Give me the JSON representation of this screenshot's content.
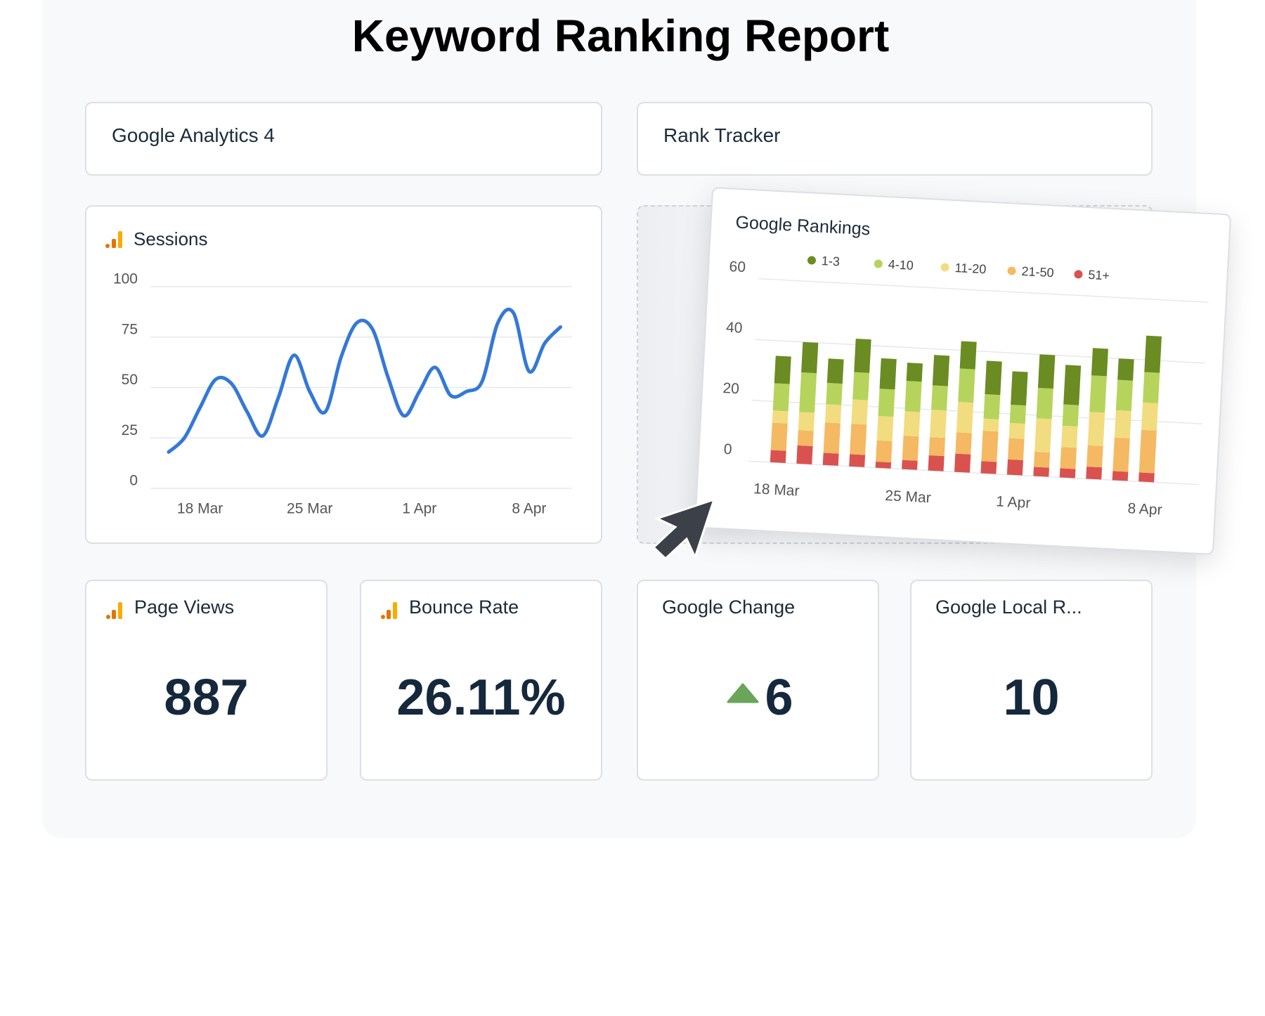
{
  "title": "Keyword Ranking Report",
  "sections": [
    "Google Analytics 4",
    "Rank Tracker"
  ],
  "chart_data": [
    {
      "type": "line",
      "title": "Sessions",
      "color": "#3478d8",
      "categories": [
        null,
        null,
        "18 Mar",
        null,
        null,
        null,
        null,
        null,
        null,
        "25 Mar",
        null,
        null,
        null,
        null,
        null,
        null,
        "1 Apr",
        null,
        null,
        null,
        null,
        null,
        null,
        "8 Apr",
        null,
        null
      ],
      "values": [
        18,
        25,
        40,
        54,
        52,
        38,
        26,
        45,
        66,
        48,
        38,
        65,
        82,
        79,
        55,
        36,
        48,
        60,
        46,
        48,
        53,
        82,
        87,
        58,
        72,
        80
      ],
      "ylim": [
        0,
        100
      ],
      "yticks": [
        0,
        25,
        50,
        75,
        100
      ],
      "grid": true
    },
    {
      "type": "stacked-bar",
      "title": "Google Rankings",
      "categories": [
        "18 Mar",
        null,
        null,
        null,
        null,
        "25 Mar",
        null,
        null,
        null,
        "1 Apr",
        null,
        null,
        null,
        null,
        "8 Apr"
      ],
      "series": [
        {
          "name": "1-3",
          "color": "#6a8c22",
          "values": [
            9,
            10,
            8,
            11,
            10,
            6,
            10,
            9,
            11,
            11,
            11,
            13,
            9,
            7,
            12
          ]
        },
        {
          "name": "4-10",
          "color": "#b6d45c",
          "values": [
            9,
            13,
            7,
            9,
            9,
            10,
            8,
            11,
            8,
            6,
            10,
            7,
            12,
            10,
            10
          ]
        },
        {
          "name": "11-20",
          "color": "#f2dc80",
          "values": [
            4,
            6,
            6,
            8,
            8,
            8,
            9,
            10,
            4,
            5,
            11,
            7,
            11,
            9,
            9
          ]
        },
        {
          "name": "21-50",
          "color": "#f4b962",
          "values": [
            9,
            5,
            10,
            10,
            7,
            8,
            6,
            7,
            10,
            7,
            5,
            7,
            7,
            11,
            14
          ]
        },
        {
          "name": "51+",
          "color": "#d9524f",
          "values": [
            4,
            6,
            4,
            4,
            2,
            3,
            5,
            6,
            4,
            5,
            3,
            3,
            4,
            3,
            3
          ]
        }
      ],
      "ylim": [
        0,
        60
      ],
      "yticks": [
        0,
        20,
        40,
        60
      ],
      "grid": true,
      "legend": "top"
    }
  ],
  "metrics": [
    {
      "label": "Page Views",
      "value": "887"
    },
    {
      "label": "Bounce Rate",
      "value": "26.11%"
    },
    {
      "label": "Google Change",
      "value": "6"
    },
    {
      "label": "Google Local R...",
      "value": "10"
    }
  ]
}
